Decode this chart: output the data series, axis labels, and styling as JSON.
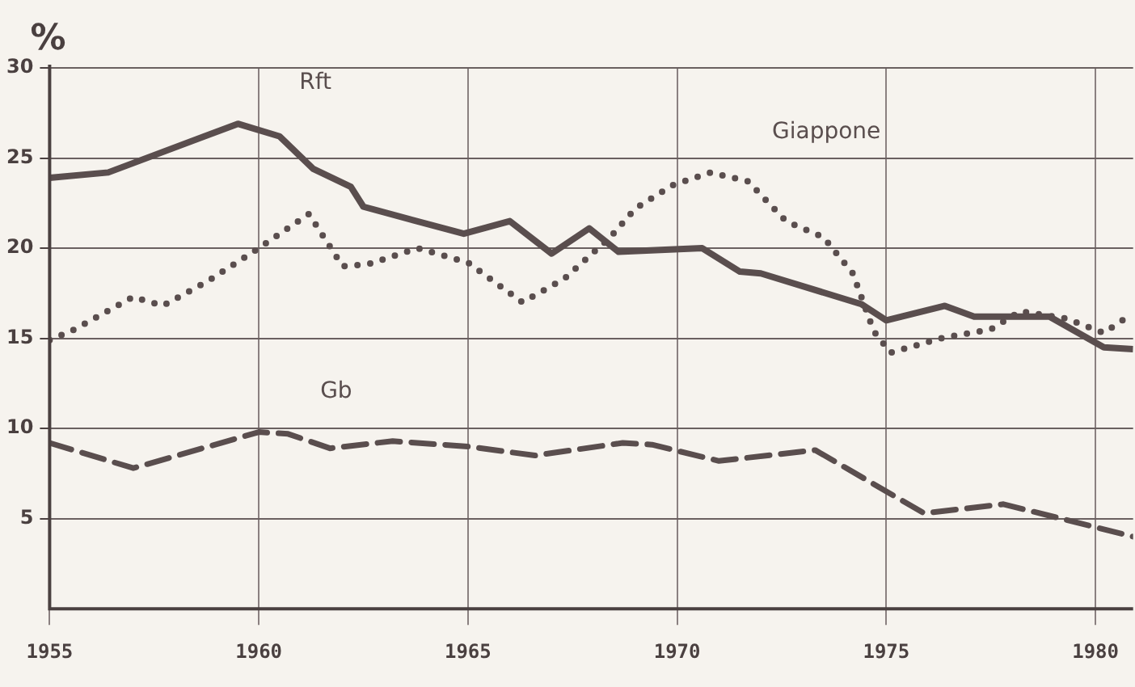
{
  "chart_data": {
    "type": "line",
    "ylabel": "%",
    "xlim": [
      1955,
      1980.9
    ],
    "xticks": [
      1955,
      1960,
      1965,
      1970,
      1975,
      1980
    ],
    "ylim": [
      0,
      30
    ],
    "yticks": [
      5,
      10,
      15,
      20,
      25,
      30
    ],
    "grid": true,
    "legend": false,
    "marker": "none",
    "series": [
      {
        "name": "Rft",
        "color": "#5a4e4e",
        "line_style": "solid",
        "x": [
          1955,
          1956.4,
          1959.5,
          1960.5,
          1961.3,
          1962.2,
          1962.5,
          1964.9,
          1966,
          1967,
          1967.9,
          1968.6,
          1970.6,
          1971.5,
          1972,
          1974.4,
          1975,
          1976.4,
          1977.1,
          1978.9,
          1980.2,
          1980.9
        ],
        "values": [
          23.9,
          24.2,
          26.9,
          26.2,
          24.4,
          23.4,
          22.3,
          20.8,
          21.5,
          19.7,
          21.1,
          19.8,
          20,
          18.7,
          18.6,
          16.9,
          16,
          16.8,
          16.2,
          16.2,
          14.5,
          14.4
        ]
      },
      {
        "name": "Giappone",
        "color": "#5a4e4e",
        "line_style": "dotted",
        "x": [
          1955,
          1955.6,
          1957,
          1957.7,
          1958.8,
          1960,
          1961.2,
          1962,
          1962.6,
          1963.8,
          1965,
          1966.3,
          1967.3,
          1968.4,
          1969,
          1969.9,
          1970.8,
          1971.7,
          1972.6,
          1973.5,
          1974.2,
          1974.7,
          1975.1,
          1976.3,
          1977.5,
          1978.2,
          1979.3,
          1980.2,
          1980.9
        ],
        "values": [
          14.9,
          15.5,
          17.3,
          16.8,
          18.2,
          20,
          21.9,
          19,
          19.1,
          20,
          19.2,
          17,
          18.3,
          20.6,
          22.2,
          23.5,
          24.2,
          23.7,
          21.5,
          20.6,
          18.6,
          15.4,
          14.2,
          15,
          15.5,
          16.5,
          16.1,
          15.3,
          16.4
        ]
      },
      {
        "name": "Gb",
        "color": "#5a4e4e",
        "line_style": "dashed",
        "x": [
          1955,
          1957,
          1960,
          1960.7,
          1961.7,
          1963.2,
          1965,
          1966.6,
          1968.7,
          1969.4,
          1971,
          1973.3,
          1975.9,
          1977.8,
          1980.9
        ],
        "values": [
          9.2,
          7.8,
          9.8,
          9.7,
          8.9,
          9.3,
          9,
          8.5,
          9.2,
          9.1,
          8.2,
          8.8,
          5.3,
          5.8,
          4
        ]
      }
    ]
  }
}
